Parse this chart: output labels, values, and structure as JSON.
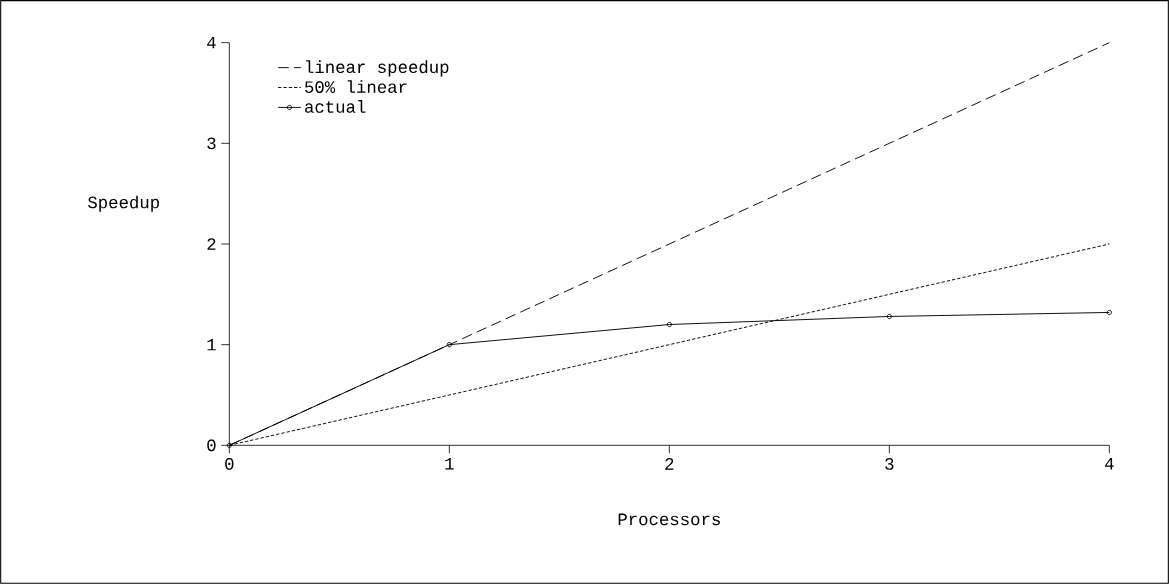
{
  "chart_data": {
    "type": "line",
    "xlabel": "Processors",
    "ylabel": "Speedup",
    "x": [
      0,
      1,
      2,
      3,
      4
    ],
    "series": [
      {
        "name": "linear speedup",
        "color": "#000000",
        "values": [
          0,
          1,
          2,
          3,
          4
        ],
        "line_style": "dashed",
        "marker": "none"
      },
      {
        "name": "50% linear",
        "color": "#000000",
        "values": [
          0,
          0.5,
          1,
          1.5,
          2
        ],
        "line_style": "dotted",
        "marker": "none"
      },
      {
        "name": "actual",
        "color": "#000000",
        "values": [
          0,
          1,
          1.2,
          1.28,
          1.32
        ],
        "line_style": "solid",
        "marker": "circle"
      }
    ],
    "xlim": [
      0,
      4
    ],
    "ylim": [
      0,
      4
    ],
    "xticks": [
      0,
      1,
      2,
      3,
      4
    ],
    "yticks": [
      0,
      1,
      2,
      3,
      4
    ],
    "grid": false,
    "legend": "top left"
  }
}
